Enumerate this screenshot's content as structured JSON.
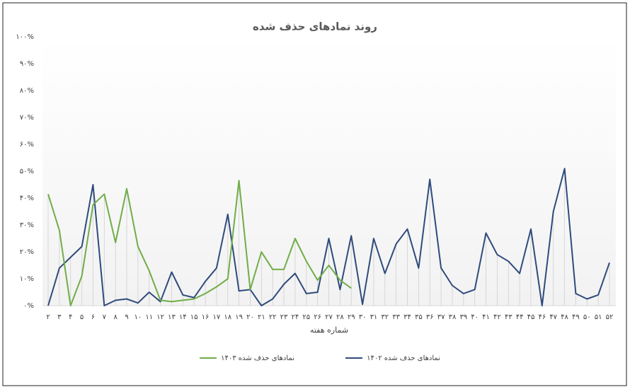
{
  "chart_data": {
    "type": "line",
    "title": "روند نمادهای حذف شده",
    "x_label": "شماره هفته",
    "categories": [
      "۲",
      "۳",
      "۴",
      "۵",
      "۶",
      "۷",
      "۸",
      "۹",
      "۱۰",
      "۱۱",
      "۱۲",
      "۱۳",
      "۱۴",
      "۱۵",
      "۱۶",
      "۱۷",
      "۱۸",
      "۱۹",
      "۲۰",
      "۲۱",
      "۲۲",
      "۲۳",
      "۲۴",
      "۲۵",
      "۲۶",
      "۲۷",
      "۲۸",
      "۲۹",
      "۳۰",
      "۳۱",
      "۳۲",
      "۳۳",
      "۳۴",
      "۳۵",
      "۳۶",
      "۳۷",
      "۳۸",
      "۳۹",
      "۴۰",
      "۴۱",
      "۴۲",
      "۴۳",
      "۴۴",
      "۴۵",
      "۴۶",
      "۴۷",
      "۴۸",
      "۴۹",
      "۵۰",
      "۵۱",
      "۵۲"
    ],
    "series": [
      {
        "name": "نمادهای حذف شده ۱۴۰۳",
        "color": "#70ad47",
        "values": [
          41.5,
          28,
          0,
          11,
          37.5,
          41.5,
          23.5,
          43.5,
          22,
          13,
          2,
          1.5,
          2,
          2.5,
          4.5,
          7,
          10,
          46.5,
          6,
          20,
          13.5,
          13.5,
          25,
          16.5,
          9.5,
          15,
          9.5,
          6.5,
          null,
          null,
          null,
          null,
          null,
          null,
          null,
          null,
          null,
          null,
          null,
          null,
          null,
          null,
          null,
          null,
          null,
          null,
          null,
          null,
          null,
          null,
          null
        ]
      },
      {
        "name": "نمادهای حذف شده ۱۴۰۲",
        "color": "#2f4b7c",
        "values": [
          0,
          14,
          18,
          22,
          45,
          0,
          2,
          2.5,
          1,
          5,
          1.5,
          12.5,
          4,
          3,
          9,
          14,
          34,
          5.5,
          6,
          0,
          2.5,
          8,
          12,
          4.5,
          5,
          25,
          6,
          26,
          0.5,
          25,
          12,
          23,
          28.5,
          14,
          47,
          14,
          7.5,
          4.5,
          6,
          27,
          19,
          16.5,
          12,
          28.5,
          0,
          35,
          51,
          4.5,
          2.5,
          4,
          16
        ]
      }
    ],
    "ylim": [
      0,
      100
    ],
    "yticks": [
      {
        "value": 0,
        "label": "۰%"
      },
      {
        "value": 10,
        "label": "۱۰%"
      },
      {
        "value": 20,
        "label": "۲۰%"
      },
      {
        "value": 30,
        "label": "۳۰%"
      },
      {
        "value": 40,
        "label": "۴۰%"
      },
      {
        "value": 50,
        "label": "۵۰%"
      },
      {
        "value": 60,
        "label": "۶۰%"
      },
      {
        "value": 70,
        "label": "۷۰%"
      },
      {
        "value": 80,
        "label": "۸۰%"
      },
      {
        "value": 90,
        "label": "۹۰%"
      },
      {
        "value": 100,
        "label": "۱۰۰%"
      }
    ],
    "legend": "bottom"
  }
}
